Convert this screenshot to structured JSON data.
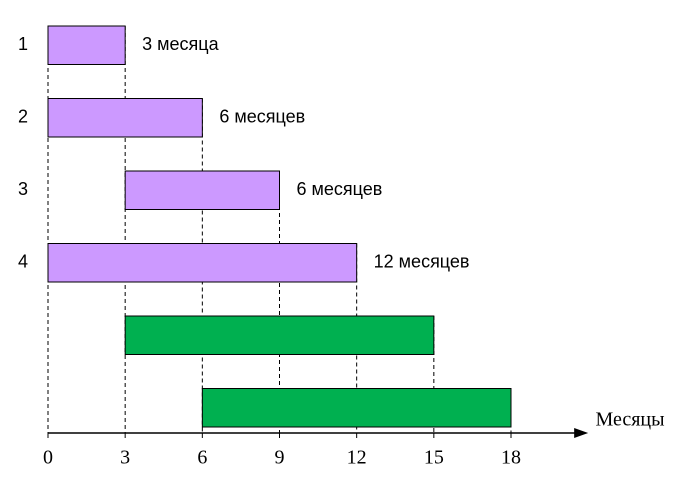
{
  "chart_data": {
    "type": "gantt",
    "categories": [
      "1",
      "2",
      "3",
      "4",
      null,
      null
    ],
    "starts": [
      0,
      0,
      3,
      0,
      3,
      6
    ],
    "values": [
      3,
      6,
      6,
      12,
      12,
      12
    ],
    "value_labels": [
      "3 месяца",
      "6 месяцев",
      "6 месяцев",
      "12 месяцев",
      null,
      null
    ],
    "colors": [
      "#cc99ff",
      "#cc99ff",
      "#cc99ff",
      "#cc99ff",
      "#00b050",
      "#00b050"
    ],
    "x_label": "Месяцы",
    "xlim": [
      0,
      21
    ],
    "xticks": [
      0,
      3,
      6,
      9,
      12,
      15,
      18
    ],
    "grid": true
  }
}
